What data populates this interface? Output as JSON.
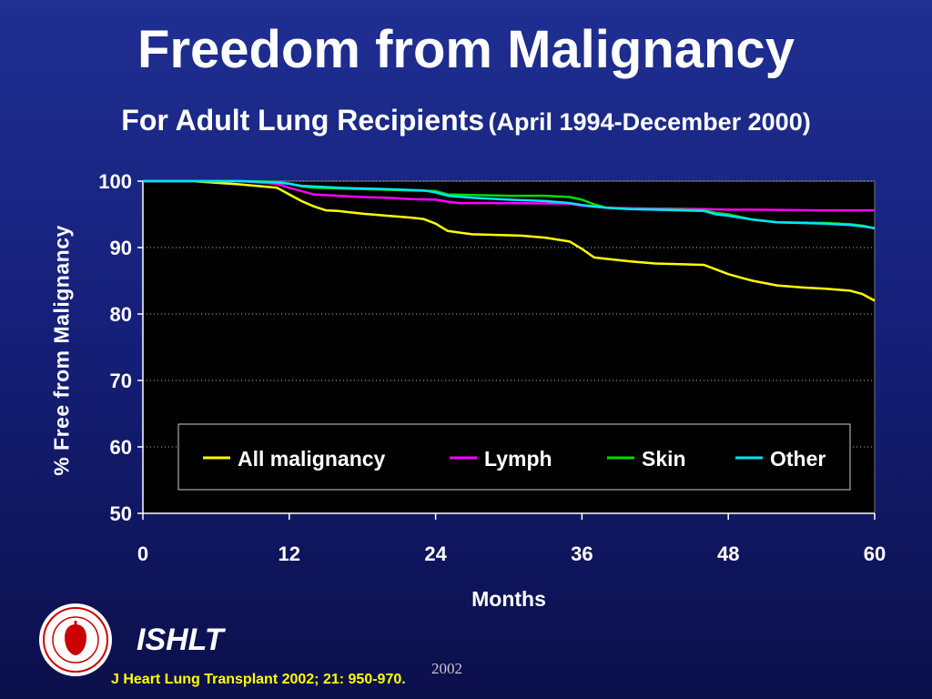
{
  "slide": {
    "title": "Freedom from Malignancy",
    "subtitle": "For Adult Lung Recipients",
    "subtitle_range": "(April 1994-December 2000)",
    "brand": "ISHLT",
    "year": "2002",
    "citation": "J Heart Lung Transplant 2002; 21: 950-970.",
    "logo_icon": "ishlt-seal-icon",
    "colors": {
      "background_top": "#1f2f92",
      "background_bottom": "#0b0f4a",
      "plot_background": "#000000",
      "citation": "#ffff00"
    }
  },
  "chart_data": {
    "type": "line",
    "title": "Freedom from Malignancy",
    "xlabel": "Months",
    "ylabel": "% Free from Malignancy",
    "xlim": [
      0,
      60
    ],
    "ylim": [
      50,
      100
    ],
    "xticks": [
      0,
      12,
      24,
      36,
      48,
      60
    ],
    "yticks": [
      50,
      60,
      70,
      80,
      90,
      100
    ],
    "grid": "horizontal dotted",
    "legend_position": "inside-bottom",
    "series": [
      {
        "name": "All malignancy",
        "color": "#ffff00",
        "x": [
          0,
          4,
          8,
          11,
          12,
          13,
          14,
          15,
          16,
          18,
          20,
          22,
          23,
          24,
          25,
          27,
          29,
          31,
          33,
          35,
          36,
          37,
          38,
          40,
          42,
          44,
          46,
          47,
          48,
          49,
          50,
          52,
          54,
          56,
          58,
          59,
          60
        ],
        "y": [
          100,
          100,
          99.5,
          99.0,
          98.0,
          97.0,
          96.2,
          95.6,
          95.5,
          95.1,
          94.8,
          94.5,
          94.3,
          93.6,
          92.5,
          92.0,
          91.9,
          91.8,
          91.5,
          90.9,
          89.8,
          88.5,
          88.3,
          87.9,
          87.6,
          87.5,
          87.4,
          86.7,
          86.0,
          85.5,
          85.0,
          84.3,
          84.0,
          83.8,
          83.5,
          83.0,
          82.0
        ]
      },
      {
        "name": "Lymph",
        "color": "#ff00ff",
        "x": [
          0,
          8,
          11,
          12,
          13,
          14,
          16,
          18,
          20,
          22,
          24,
          25,
          26,
          30,
          35,
          36,
          38,
          40,
          46,
          48,
          50,
          55,
          60
        ],
        "y": [
          100,
          100,
          99.6,
          99.0,
          98.5,
          98.0,
          97.8,
          97.6,
          97.5,
          97.3,
          97.2,
          96.9,
          96.7,
          96.7,
          96.6,
          96.3,
          96.0,
          95.9,
          95.8,
          95.7,
          95.7,
          95.6,
          95.6
        ]
      },
      {
        "name": "Skin",
        "color": "#00dd00",
        "x": [
          0,
          8,
          11,
          12,
          13,
          14,
          16,
          18,
          20,
          22,
          24,
          25,
          27,
          30,
          33,
          35,
          36,
          37,
          38,
          40,
          44,
          46,
          47,
          48,
          50,
          52,
          56,
          58,
          59,
          60
        ],
        "y": [
          100,
          100,
          99.9,
          99.6,
          99.2,
          99.0,
          98.9,
          98.8,
          98.7,
          98.6,
          98.5,
          98.0,
          97.9,
          97.8,
          97.8,
          97.6,
          97.2,
          96.5,
          96.0,
          95.8,
          95.7,
          95.6,
          95.2,
          95.0,
          94.2,
          93.8,
          93.7,
          93.5,
          93.3,
          92.9
        ]
      },
      {
        "name": "Other",
        "color": "#00e5ff",
        "x": [
          0,
          8,
          11,
          12,
          13,
          16,
          20,
          23,
          24,
          25,
          27,
          30,
          33,
          35,
          36,
          38,
          40,
          46,
          47,
          48,
          50,
          52,
          56,
          58,
          59,
          60
        ],
        "y": [
          100,
          100,
          99.8,
          99.6,
          99.3,
          99.0,
          98.8,
          98.6,
          98.3,
          97.8,
          97.5,
          97.2,
          97.0,
          96.7,
          96.4,
          96.0,
          95.8,
          95.5,
          95.0,
          94.8,
          94.2,
          93.8,
          93.6,
          93.4,
          93.2,
          92.9
        ]
      }
    ]
  }
}
